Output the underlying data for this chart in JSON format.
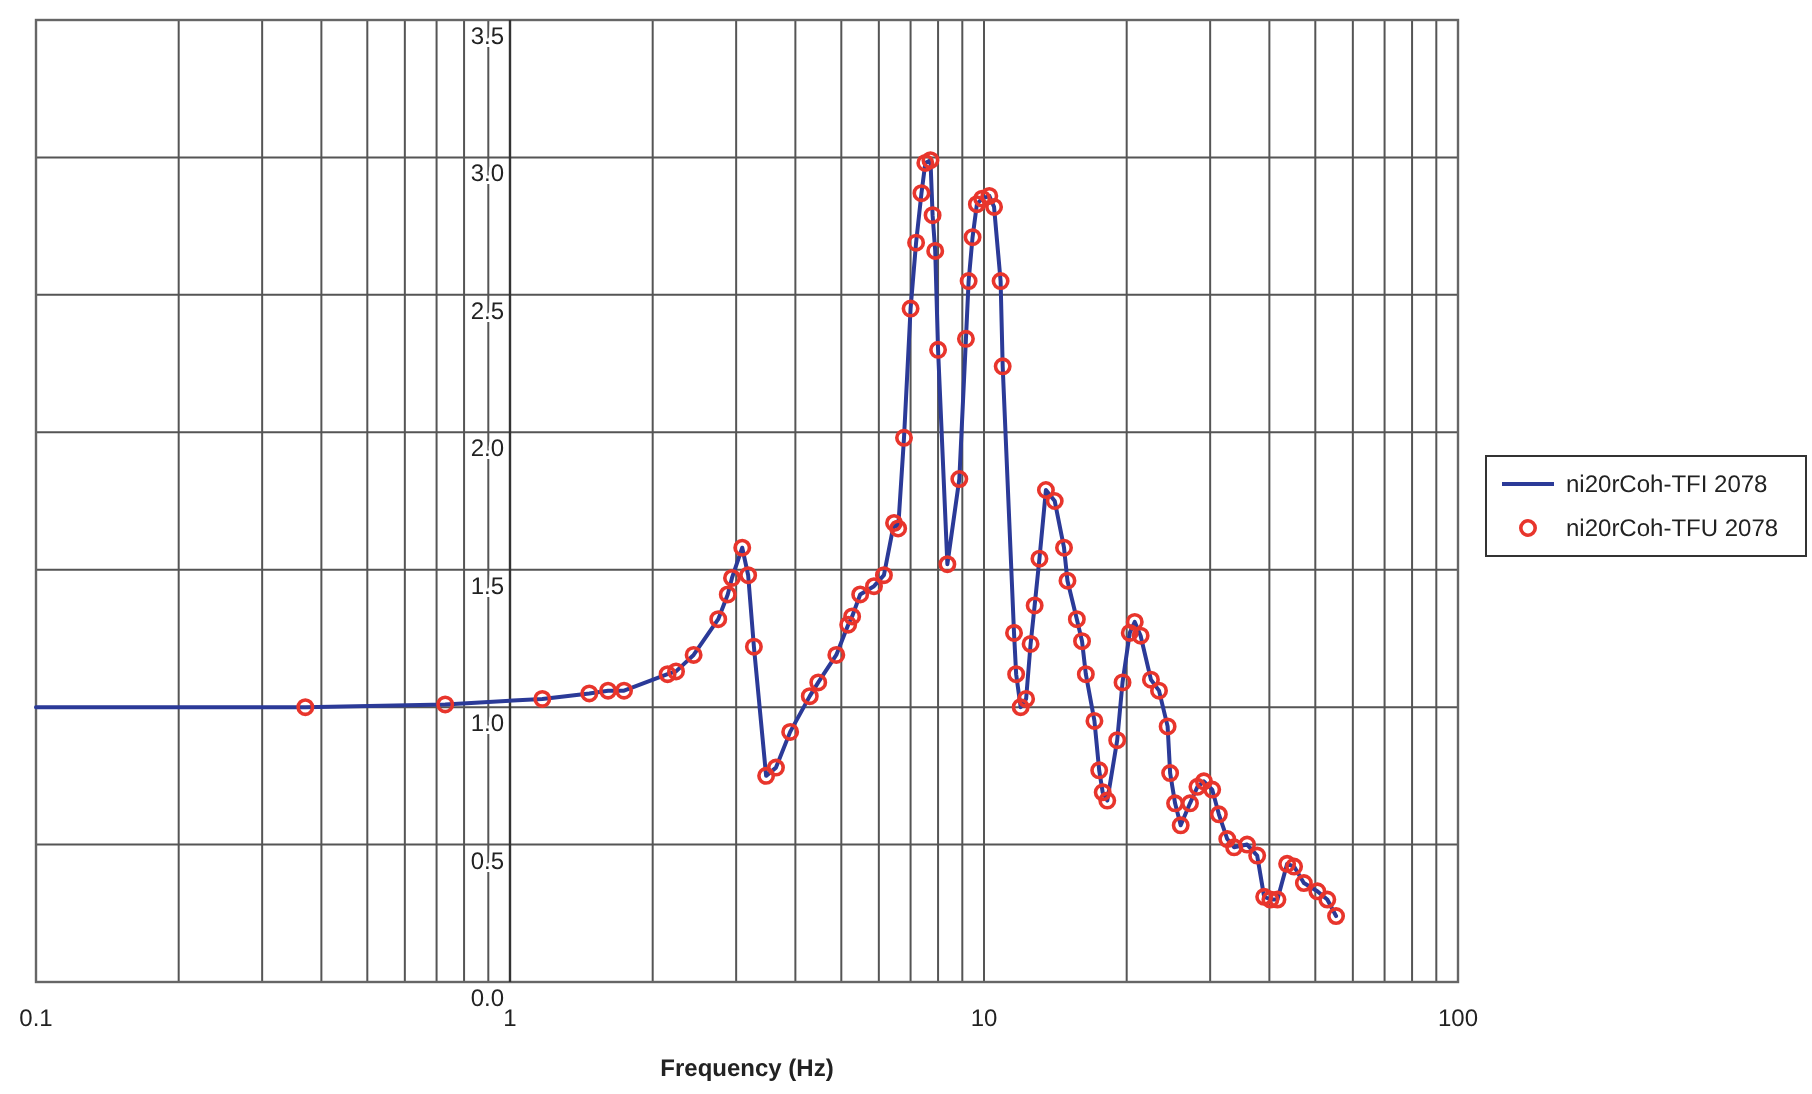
{
  "chart_data": {
    "type": "line",
    "xlabel": "Frequency (Hz)",
    "log": "x",
    "grid": true,
    "legend": "right",
    "xlim": [
      0.1,
      100
    ],
    "ylim": [
      0,
      3.5
    ],
    "xticks": [
      0.1,
      {
        "value": 0.2,
        "label": null
      },
      {
        "value": 0.3,
        "label": null
      },
      {
        "value": 0.4,
        "label": null
      },
      {
        "value": 0.5,
        "label": null
      },
      {
        "value": 0.6,
        "label": null
      },
      {
        "value": 0.7,
        "label": null
      },
      {
        "value": 0.8,
        "label": null
      },
      {
        "value": 0.9,
        "label": null
      },
      1,
      {
        "value": 2,
        "label": null
      },
      {
        "value": 3,
        "label": null
      },
      {
        "value": 4,
        "label": null
      },
      {
        "value": 5,
        "label": null
      },
      {
        "value": 6,
        "label": null
      },
      {
        "value": 7,
        "label": null
      },
      {
        "value": 8,
        "label": null
      },
      {
        "value": 9,
        "label": null
      },
      10,
      {
        "value": 20,
        "label": null
      },
      {
        "value": 30,
        "label": null
      },
      {
        "value": 40,
        "label": null
      },
      {
        "value": 50,
        "label": null
      },
      {
        "value": 60,
        "label": null
      },
      {
        "value": 70,
        "label": null
      },
      {
        "value": 80,
        "label": null
      },
      {
        "value": 90,
        "label": null
      },
      100
    ],
    "yticks": [
      {
        "value": 0,
        "label": "0.0"
      },
      0.5,
      {
        "value": 1,
        "label": "1.0"
      },
      1.5,
      {
        "value": 2,
        "label": "2.0"
      },
      2.5,
      {
        "value": 3,
        "label": "3.0"
      },
      3.5
    ],
    "series": [
      {
        "name": "ni20rCoh-TFI 2078",
        "type": "line",
        "color": "#2b3a98",
        "marker": "none",
        "line_style": "solid",
        "x": [
          0.1,
          0.37,
          0.73,
          1.17,
          1.47,
          1.61,
          1.74,
          2.15,
          2.24,
          2.44,
          2.75,
          2.88,
          2.94,
          3.09,
          3.18,
          3.27,
          3.47,
          3.64,
          3.9,
          4.29,
          4.47,
          4.88,
          5.17,
          5.27,
          5.48,
          5.86,
          6.15,
          6.46,
          6.59,
          6.78,
          7.0,
          7.19,
          7.38,
          7.52,
          7.71,
          7.79,
          7.89,
          8.0,
          8.37,
          8.87,
          9.16,
          9.28,
          9.46,
          9.66,
          9.91,
          10.26,
          10.5,
          10.84,
          10.95,
          11.57,
          11.69,
          11.95,
          12.27,
          12.54,
          12.79,
          13.09,
          13.51,
          14.1,
          14.75,
          15.0,
          15.7,
          16.1,
          16.4,
          17.1,
          17.5,
          17.8,
          18.2,
          19.1,
          19.6,
          20.3,
          20.8,
          21.4,
          22.5,
          23.4,
          24.4,
          24.7,
          25.3,
          26.0,
          27.2,
          28.2,
          29.1,
          30.3,
          31.3,
          32.6,
          33.7,
          35.9,
          37.7,
          39.0,
          40.2,
          41.6,
          43.6,
          45.1,
          47.3,
          50.5,
          53.0,
          55.3
        ],
        "values": [
          1.0,
          1.0,
          1.01,
          1.03,
          1.05,
          1.06,
          1.06,
          1.12,
          1.13,
          1.19,
          1.32,
          1.41,
          1.47,
          1.58,
          1.48,
          1.22,
          0.75,
          0.78,
          0.91,
          1.04,
          1.09,
          1.19,
          1.3,
          1.33,
          1.41,
          1.44,
          1.48,
          1.67,
          1.65,
          1.98,
          2.45,
          2.69,
          2.87,
          2.98,
          2.99,
          2.79,
          2.66,
          2.3,
          1.52,
          1.83,
          2.34,
          2.55,
          2.71,
          2.83,
          2.85,
          2.86,
          2.82,
          2.55,
          2.24,
          1.27,
          1.12,
          1.0,
          1.03,
          1.23,
          1.37,
          1.54,
          1.79,
          1.75,
          1.58,
          1.46,
          1.32,
          1.24,
          1.12,
          0.95,
          0.77,
          0.69,
          0.66,
          0.88,
          1.09,
          1.27,
          1.31,
          1.26,
          1.1,
          1.06,
          0.93,
          0.76,
          0.65,
          0.57,
          0.65,
          0.71,
          0.73,
          0.7,
          0.61,
          0.52,
          0.49,
          0.5,
          0.46,
          0.31,
          0.3,
          0.3,
          0.43,
          0.42,
          0.36,
          0.33,
          0.3,
          0.24
        ]
      },
      {
        "name": "ni20rCoh-TFU 2078",
        "type": "scatter",
        "color": "#e8352c",
        "marker": "circle",
        "x": [
          0.37,
          0.73,
          1.17,
          1.47,
          1.61,
          1.74,
          2.15,
          2.24,
          2.44,
          2.75,
          2.88,
          2.94,
          3.09,
          3.18,
          3.27,
          3.47,
          3.64,
          3.9,
          4.29,
          4.47,
          4.88,
          5.17,
          5.27,
          5.48,
          5.86,
          6.15,
          6.46,
          6.59,
          6.78,
          7.0,
          7.19,
          7.38,
          7.52,
          7.71,
          7.79,
          7.89,
          8.0,
          8.37,
          8.87,
          9.16,
          9.28,
          9.46,
          9.66,
          9.91,
          10.26,
          10.5,
          10.84,
          10.95,
          11.57,
          11.69,
          11.95,
          12.27,
          12.54,
          12.79,
          13.09,
          13.51,
          14.1,
          14.75,
          15.0,
          15.7,
          16.1,
          16.4,
          17.1,
          17.5,
          17.8,
          18.2,
          19.1,
          19.6,
          20.3,
          20.8,
          21.4,
          22.5,
          23.4,
          24.4,
          24.7,
          25.3,
          26.0,
          27.2,
          28.2,
          29.1,
          30.3,
          31.3,
          32.6,
          33.7,
          35.9,
          37.7,
          39.0,
          40.2,
          41.6,
          43.6,
          45.1,
          47.3,
          50.5,
          53.0,
          55.3
        ],
        "values": [
          1.0,
          1.01,
          1.03,
          1.05,
          1.06,
          1.06,
          1.12,
          1.13,
          1.19,
          1.32,
          1.41,
          1.47,
          1.58,
          1.48,
          1.22,
          0.75,
          0.78,
          0.91,
          1.04,
          1.09,
          1.19,
          1.3,
          1.33,
          1.41,
          1.44,
          1.48,
          1.67,
          1.65,
          1.98,
          2.45,
          2.69,
          2.87,
          2.98,
          2.99,
          2.79,
          2.66,
          2.3,
          1.52,
          1.83,
          2.34,
          2.55,
          2.71,
          2.83,
          2.85,
          2.86,
          2.82,
          2.55,
          2.24,
          1.27,
          1.12,
          1.0,
          1.03,
          1.23,
          1.37,
          1.54,
          1.79,
          1.75,
          1.58,
          1.46,
          1.32,
          1.24,
          1.12,
          0.95,
          0.77,
          0.69,
          0.66,
          0.88,
          1.09,
          1.27,
          1.31,
          1.26,
          1.1,
          1.06,
          0.93,
          0.76,
          0.65,
          0.57,
          0.65,
          0.71,
          0.73,
          0.7,
          0.61,
          0.52,
          0.49,
          0.5,
          0.46,
          0.31,
          0.3,
          0.3,
          0.43,
          0.42,
          0.36,
          0.33,
          0.3,
          0.24
        ]
      }
    ]
  }
}
